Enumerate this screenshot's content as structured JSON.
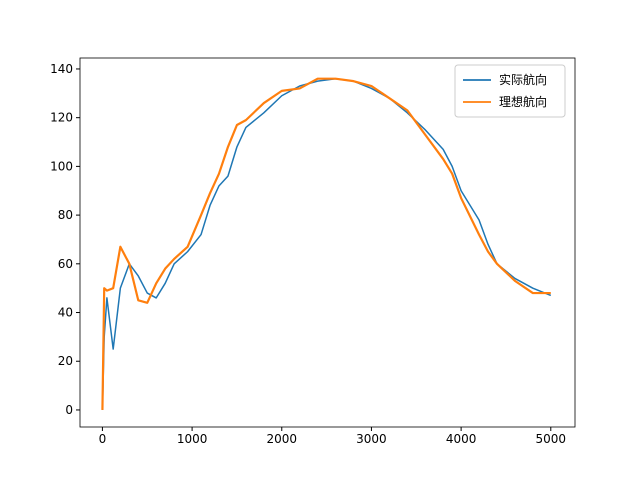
{
  "chart_data": {
    "type": "line",
    "x": [
      0,
      20,
      50,
      120,
      200,
      300,
      400,
      500,
      600,
      700,
      800,
      950,
      1100,
      1200,
      1300,
      1400,
      1500,
      1600,
      1800,
      2000,
      2200,
      2400,
      2600,
      2800,
      3000,
      3200,
      3400,
      3600,
      3800,
      3900,
      4000,
      4200,
      4300,
      4400,
      4600,
      4800,
      5000
    ],
    "series": [
      {
        "name": "实际航向",
        "color": "#1f77b4",
        "values": [
          0,
          30,
          46,
          25,
          50,
          60,
          55,
          48,
          46,
          52,
          60,
          65,
          72,
          84,
          92,
          96,
          108,
          116,
          122,
          129,
          133,
          135,
          136,
          135,
          132,
          128,
          122,
          115,
          107,
          100,
          90,
          78,
          68,
          60,
          54,
          50,
          47
        ]
      },
      {
        "name": "理想航向",
        "color": "#ff7f0e",
        "values": [
          0,
          50,
          49,
          50,
          67,
          60,
          45,
          44,
          52,
          58,
          62,
          67,
          80,
          89,
          97,
          108,
          117,
          119,
          126,
          131,
          132,
          136,
          136,
          135,
          133,
          128,
          123,
          113,
          103,
          97,
          87,
          72,
          65,
          60,
          53,
          48,
          48
        ]
      }
    ],
    "xlim": [
      -250,
      5270
    ],
    "ylim": [
      -7,
      144.5
    ],
    "xticks": [
      0,
      1000,
      2000,
      3000,
      4000,
      5000
    ],
    "yticks": [
      0,
      20,
      40,
      60,
      80,
      100,
      120,
      140
    ],
    "legend": "upper right"
  }
}
